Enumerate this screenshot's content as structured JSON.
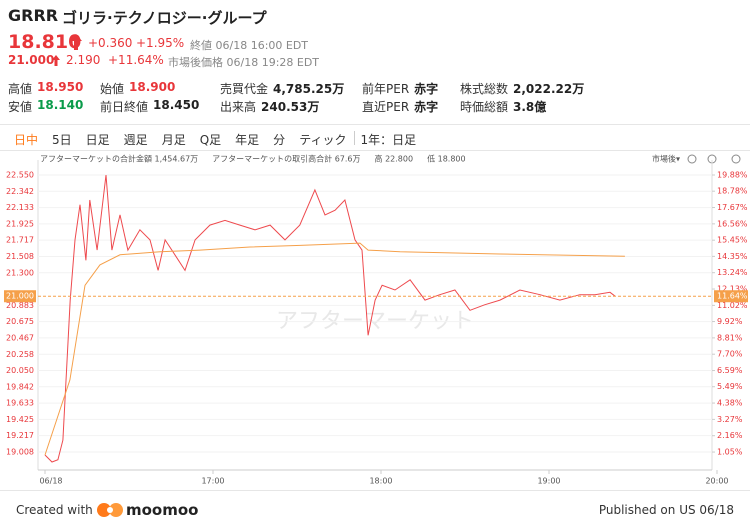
{
  "header": {
    "symbol": "GRRR",
    "name": "ゴリラ·テクノロジー·グループ",
    "price": "18.810",
    "change": "+0.360",
    "change_pct": "+1.95%",
    "status": "終値 06/18 16:00 EDT",
    "after_price": "21.000",
    "after_change": "2.190",
    "after_change_pct": "+11.64%",
    "after_status": "市場後価格 06/18 19:28 EDT"
  },
  "stats": [
    {
      "label": "高値",
      "value": "18.950",
      "color": "#e8363a"
    },
    {
      "label": "始値",
      "value": "18.900",
      "color": "#e8363a"
    },
    {
      "label": "売買代金",
      "value": "4,785.25万",
      "color": "#222222"
    },
    {
      "label": "前年PER",
      "value": "赤字",
      "color": "#222222"
    },
    {
      "label": "株式総数",
      "value": "2,022.22万",
      "color": "#222222"
    },
    {
      "label": "安値",
      "value": "18.140",
      "color": "#0a9b4a"
    },
    {
      "label": "前日終値",
      "value": "18.450",
      "color": "#222222"
    },
    {
      "label": "出来高",
      "value": "240.53万",
      "color": "#222222"
    },
    {
      "label": "直近PER",
      "value": "赤字",
      "color": "#222222"
    },
    {
      "label": "時価総額",
      "value": "3.8億",
      "color": "#222222"
    }
  ],
  "tabs": [
    "日中",
    "5日",
    "日足",
    "週足",
    "月足",
    "Q足",
    "年足",
    "分",
    "ティック",
    "1年：日足"
  ],
  "chart_data": {
    "type": "line",
    "legend": [
      "アフターマーケットの合計金額 1,454.67万",
      "アフターマーケットの取引高合計 67.6万",
      "高 22.800",
      "低 18.800"
    ],
    "session_label": "市場後▾",
    "watermark": "アフターマーケット",
    "xlim": [
      0,
      240
    ],
    "xticks": [
      {
        "value": 0,
        "label": "06/18"
      },
      {
        "value": 60,
        "label": "17:00"
      },
      {
        "value": 120,
        "label": "18:00"
      },
      {
        "value": 180,
        "label": "19:00"
      },
      {
        "value": 240,
        "label": "20:00"
      }
    ],
    "ylim": [
      18.842,
      22.678
    ],
    "yticks": [
      {
        "value": 22.55,
        "label": "22.550"
      },
      {
        "value": 22.342,
        "label": "22.342"
      },
      {
        "value": 22.133,
        "label": "22.133"
      },
      {
        "value": 21.925,
        "label": "21.925"
      },
      {
        "value": 21.717,
        "label": "21.717"
      },
      {
        "value": 21.508,
        "label": "21.508"
      },
      {
        "value": 21.3,
        "label": "21.300"
      },
      {
        "value": 20.883,
        "label": "20.883"
      },
      {
        "value": 20.675,
        "label": "20.675"
      },
      {
        "value": 20.467,
        "label": "20.467"
      },
      {
        "value": 20.258,
        "label": "20.258"
      },
      {
        "value": 20.05,
        "label": "20.050"
      },
      {
        "value": 19.842,
        "label": "19.842"
      },
      {
        "value": 19.633,
        "label": "19.633"
      },
      {
        "value": 19.425,
        "label": "19.425"
      },
      {
        "value": 19.217,
        "label": "19.217"
      },
      19.008
    ],
    "y2lim": [
      0.17,
      20.56
    ],
    "y2ticks": [
      {
        "value": 19.88,
        "label": "19.88%"
      },
      {
        "value": 18.78,
        "label": "18.78%"
      },
      {
        "value": 17.67,
        "label": "17.67%"
      },
      {
        "value": 16.56,
        "label": "16.56%"
      },
      {
        "value": 15.45,
        "label": "15.45%"
      },
      {
        "value": 14.35,
        "label": "14.35%"
      },
      {
        "value": 13.24,
        "label": "13.24%"
      },
      {
        "value": 12.13,
        "label": "12.13%"
      },
      {
        "value": 11.02,
        "label": "11.02%"
      },
      {
        "value": 9.92,
        "label": "9.92%"
      },
      {
        "value": 8.81,
        "label": "8.81%"
      },
      {
        "value": 7.7,
        "label": "7.70%"
      },
      {
        "value": 6.59,
        "label": "6.59%"
      },
      {
        "value": 5.49,
        "label": "5.49%"
      },
      {
        "value": 4.38,
        "label": "4.38%"
      },
      {
        "value": 3.27,
        "label": "3.27%"
      },
      {
        "value": 2.16,
        "label": "2.16%"
      },
      {
        "value": 1.05,
        "label": "1.05%"
      }
    ],
    "current": {
      "value": 21.0,
      "label": "21.000",
      "pct": 11.64,
      "pct_label": "11.64%",
      "color": "#f5a04a"
    },
    "series": [
      {
        "color": "#ee4a4e",
        "x": [
          0,
          2.5,
          4.6,
          6.4,
          9,
          10.7,
          12.5,
          14.6,
          16,
          18.6,
          21.8,
          23.9,
          26.8,
          29.6,
          33.9,
          37.5,
          40.4,
          42.9,
          46.4,
          50,
          53.6,
          58.9,
          64.3,
          69.6,
          75,
          80.4,
          85.7,
          91,
          96.4,
          100,
          103.6,
          107.1,
          110.7,
          113.2,
          115.4,
          117.9,
          120.4,
          125,
          130.4,
          135.7,
          141,
          146.4,
          151.8,
          157,
          162.5,
          169.6,
          176.8,
          183.9,
          191,
          196.4,
          201.8,
          203.6
        ],
        "values": [
          18.97,
          18.88,
          18.91,
          19.16,
          20.95,
          21.72,
          22.17,
          21.46,
          22.23,
          21.59,
          22.55,
          21.59,
          22.04,
          21.59,
          21.85,
          21.72,
          21.33,
          21.72,
          21.53,
          21.33,
          21.72,
          21.91,
          21.97,
          21.91,
          21.85,
          21.91,
          21.72,
          21.91,
          22.36,
          22.04,
          22.1,
          22.23,
          21.72,
          21.59,
          20.5,
          20.95,
          21.14,
          21.08,
          21.21,
          20.95,
          21.02,
          21.08,
          20.82,
          20.89,
          20.95,
          21.08,
          21.02,
          20.95,
          21.02,
          21.02,
          21.05,
          21.0
        ]
      },
      {
        "color": "#f5a04a",
        "x": [
          0,
          8.9,
          14.3,
          19.6,
          26.8,
          41.1,
          55.4,
          73.2,
          91.1,
          112.5,
          115.4,
          126.8,
          162.5,
          207.1
        ],
        "values": [
          18.97,
          19.93,
          21.14,
          21.4,
          21.53,
          21.57,
          21.59,
          21.63,
          21.65,
          21.68,
          21.59,
          21.57,
          21.54,
          21.51
        ]
      }
    ]
  },
  "footer": {
    "created": "Created with",
    "brand": "moomoo",
    "published": "Published on US 06/18"
  }
}
